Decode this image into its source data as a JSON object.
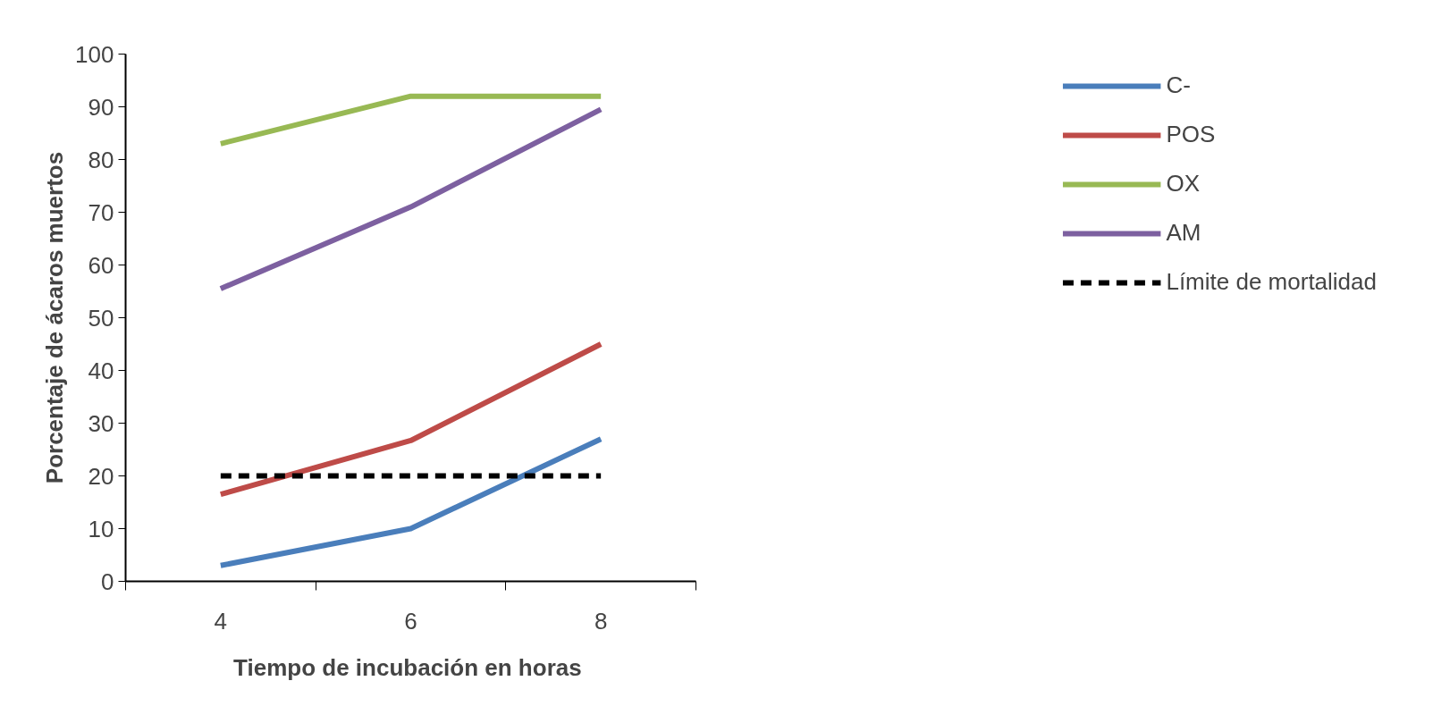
{
  "chart_data": {
    "type": "line",
    "xlabel": "Tiempo de incubación  en horas",
    "ylabel": "Porcentaje de ácaros muertos",
    "categories": [
      "4",
      "6",
      "8"
    ],
    "ylim": [
      0,
      100
    ],
    "yticks": [
      0,
      10,
      20,
      30,
      40,
      50,
      60,
      70,
      80,
      90,
      100
    ],
    "grid": false,
    "legend": "right",
    "marker": "none",
    "line_style": "solid",
    "series": [
      {
        "name": "C-",
        "color": "#4a7ebb",
        "values": [
          3,
          10,
          27
        ]
      },
      {
        "name": "POS",
        "color": "#be4b48",
        "values": [
          16.5,
          26.7,
          45
        ]
      },
      {
        "name": "OX",
        "color": "#98b954",
        "values": [
          83,
          92,
          92
        ]
      },
      {
        "name": "AM",
        "color": "#7d60a0",
        "values": [
          55.5,
          71,
          89.5
        ]
      },
      {
        "name": "Límite de mortalidad",
        "color": "#000000",
        "values": [
          20,
          20,
          20
        ],
        "line_style": "dashed"
      }
    ]
  }
}
